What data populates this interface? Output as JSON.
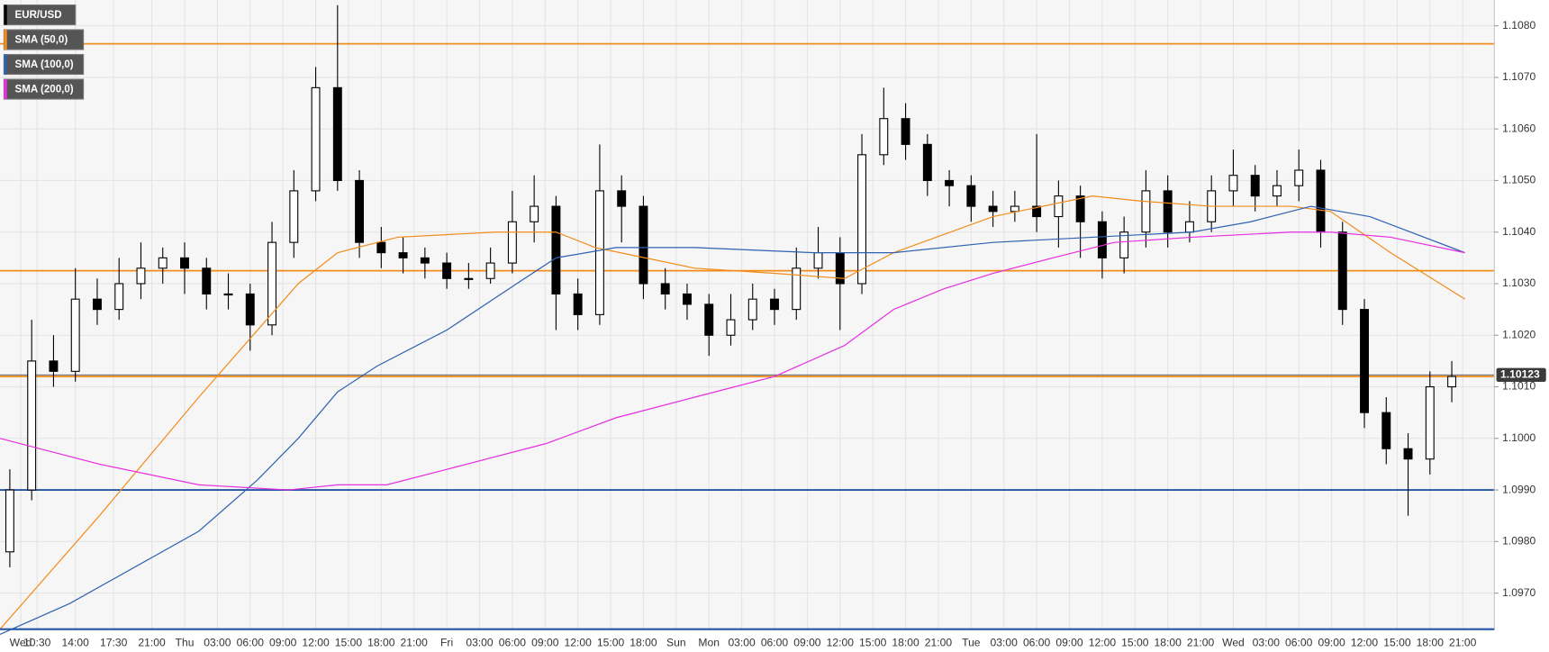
{
  "chart_data": {
    "type": "candlestick",
    "xlim": [
      7.1,
      143.9
    ],
    "ylim": [
      1.0963,
      1.1085
    ],
    "yticks": [
      {
        "value": 1.097,
        "label": "1.0970"
      },
      {
        "value": 1.098,
        "label": "1.0980"
      },
      {
        "value": 1.099,
        "label": "1.0990"
      },
      {
        "value": 1.1,
        "label": "1.1000"
      },
      {
        "value": 1.101,
        "label": "1.1010"
      },
      {
        "value": 1.102,
        "label": "1.1020"
      },
      {
        "value": 1.103,
        "label": "1.1030"
      },
      {
        "value": 1.104,
        "label": "1.1040"
      },
      {
        "value": 1.105,
        "label": "1.1050"
      },
      {
        "value": 1.106,
        "label": "1.1060"
      },
      {
        "value": 1.107,
        "label": "1.1070"
      },
      {
        "value": 1.108,
        "label": "1.1080"
      }
    ],
    "xticks": [
      {
        "value": 9,
        "label": "Wed"
      },
      {
        "value": 10.5,
        "label": "10:30"
      },
      {
        "value": 14,
        "label": "14:00"
      },
      {
        "value": 17.5,
        "label": "17:30"
      },
      {
        "value": 21,
        "label": "21:00"
      },
      {
        "value": 24,
        "label": "Thu"
      },
      {
        "value": 27,
        "label": "03:00"
      },
      {
        "value": 30,
        "label": "06:00"
      },
      {
        "value": 33,
        "label": "09:00"
      },
      {
        "value": 36,
        "label": "12:00"
      },
      {
        "value": 39,
        "label": "15:00"
      },
      {
        "value": 42,
        "label": "18:00"
      },
      {
        "value": 45,
        "label": "21:00"
      },
      {
        "value": 48,
        "label": "Fri"
      },
      {
        "value": 51,
        "label": "03:00"
      },
      {
        "value": 54,
        "label": "06:00"
      },
      {
        "value": 57,
        "label": "09:00"
      },
      {
        "value": 60,
        "label": "12:00"
      },
      {
        "value": 63,
        "label": "15:00"
      },
      {
        "value": 66,
        "label": "18:00"
      },
      {
        "value": 69,
        "label": "Sun"
      },
      {
        "value": 72,
        "label": "Mon"
      },
      {
        "value": 75,
        "label": "03:00"
      },
      {
        "value": 78,
        "label": "06:00"
      },
      {
        "value": 81,
        "label": "09:00"
      },
      {
        "value": 84,
        "label": "12:00"
      },
      {
        "value": 87,
        "label": "15:00"
      },
      {
        "value": 90,
        "label": "18:00"
      },
      {
        "value": 93,
        "label": "21:00"
      },
      {
        "value": 96,
        "label": "Tue"
      },
      {
        "value": 99,
        "label": "03:00"
      },
      {
        "value": 102,
        "label": "06:00"
      },
      {
        "value": 105,
        "label": "09:00"
      },
      {
        "value": 108,
        "label": "12:00"
      },
      {
        "value": 111,
        "label": "15:00"
      },
      {
        "value": 114,
        "label": "18:00"
      },
      {
        "value": 117,
        "label": "21:00"
      },
      {
        "value": 120,
        "label": "Wed"
      },
      {
        "value": 123,
        "label": "03:00"
      },
      {
        "value": 126,
        "label": "06:00"
      },
      {
        "value": 129,
        "label": "09:00"
      },
      {
        "value": 132,
        "label": "12:00"
      },
      {
        "value": 135,
        "label": "15:00"
      },
      {
        "value": 138,
        "label": "18:00"
      },
      {
        "value": 141,
        "label": "21:00"
      }
    ],
    "grid": true,
    "levels": [
      {
        "value": 1.10765,
        "color": "#f28c1b"
      },
      {
        "value": 1.10325,
        "color": "#f28c1b"
      },
      {
        "value": 1.1012,
        "color": "#f28c1b"
      },
      {
        "value": 1.099,
        "color": "#2455a4"
      }
    ],
    "last_price": 1.10123,
    "series": [
      {
        "name": "EUR/USD",
        "color": "#000000",
        "x": [
          8,
          10,
          12,
          14,
          16,
          18,
          20,
          22,
          24,
          26,
          28,
          30,
          32,
          34,
          36,
          38,
          40,
          42,
          44,
          46,
          48,
          50,
          52,
          54,
          56,
          58,
          60,
          62,
          64,
          66,
          68,
          70,
          72,
          74,
          76,
          78,
          80,
          82,
          84,
          86,
          88,
          90,
          92,
          94,
          96,
          98,
          100,
          102,
          104,
          106,
          108,
          110,
          112,
          114,
          116,
          118,
          120,
          122,
          124,
          126,
          128,
          130,
          132,
          134,
          136,
          138,
          140
        ],
        "open": [
          1.0978,
          1.099,
          1.1015,
          1.1013,
          1.1027,
          1.1025,
          1.103,
          1.1033,
          1.1035,
          1.1033,
          1.1028,
          1.1028,
          1.1022,
          1.1038,
          1.1048,
          1.1068,
          1.105,
          1.1038,
          1.1036,
          1.1035,
          1.1034,
          1.1031,
          1.1031,
          1.1034,
          1.1042,
          1.1045,
          1.1028,
          1.1024,
          1.1048,
          1.1045,
          1.103,
          1.1028,
          1.1026,
          1.102,
          1.1023,
          1.1027,
          1.1025,
          1.1033,
          1.1036,
          1.103,
          1.1055,
          1.1062,
          1.1057,
          1.105,
          1.1049,
          1.1045,
          1.1044,
          1.1045,
          1.1043,
          1.1047,
          1.1042,
          1.1035,
          1.104,
          1.1048,
          1.104,
          1.1042,
          1.1048,
          1.1051,
          1.1047,
          1.1049,
          1.1052,
          1.104,
          1.1025,
          1.1005,
          1.0998,
          1.0996,
          1.101
        ],
        "high": [
          1.0994,
          1.1023,
          1.102,
          1.1033,
          1.1031,
          1.1035,
          1.1038,
          1.1037,
          1.1038,
          1.1035,
          1.1032,
          1.103,
          1.1042,
          1.1052,
          1.1072,
          1.1084,
          1.1052,
          1.1041,
          1.1039,
          1.1037,
          1.1036,
          1.1034,
          1.1037,
          1.1048,
          1.1051,
          1.1047,
          1.1031,
          1.1057,
          1.1051,
          1.1047,
          1.1033,
          1.103,
          1.1028,
          1.1028,
          1.103,
          1.1029,
          1.1037,
          1.1041,
          1.1039,
          1.1059,
          1.1068,
          1.1065,
          1.1059,
          1.1052,
          1.1051,
          1.1048,
          1.1048,
          1.1059,
          1.105,
          1.1049,
          1.1044,
          1.1043,
          1.1052,
          1.1051,
          1.1046,
          1.1051,
          1.1056,
          1.1053,
          1.1052,
          1.1056,
          1.1054,
          1.1042,
          1.1027,
          1.1008,
          1.1001,
          1.1013,
          1.1015
        ],
        "low": [
          1.0975,
          1.0988,
          1.101,
          1.1011,
          1.1022,
          1.1023,
          1.1027,
          1.103,
          1.1028,
          1.1025,
          1.1025,
          1.1017,
          1.102,
          1.1035,
          1.1046,
          1.1048,
          1.1035,
          1.1033,
          1.1032,
          1.1031,
          1.1029,
          1.1029,
          1.103,
          1.1032,
          1.1038,
          1.1021,
          1.1021,
          1.1022,
          1.1038,
          1.1027,
          1.1025,
          1.1023,
          1.1016,
          1.1018,
          1.1021,
          1.1022,
          1.1023,
          1.1031,
          1.1021,
          1.1028,
          1.1053,
          1.1054,
          1.1047,
          1.1045,
          1.1042,
          1.1041,
          1.1042,
          1.104,
          1.1037,
          1.1035,
          1.1031,
          1.1032,
          1.1037,
          1.1037,
          1.1038,
          1.104,
          1.1045,
          1.1044,
          1.1045,
          1.1046,
          1.1037,
          1.1022,
          1.1002,
          1.0995,
          1.0985,
          1.0993,
          1.1007
        ],
        "close": [
          1.099,
          1.1015,
          1.1013,
          1.1027,
          1.1025,
          1.103,
          1.1033,
          1.1035,
          1.1033,
          1.1028,
          1.1028,
          1.1022,
          1.1038,
          1.1048,
          1.1068,
          1.105,
          1.1038,
          1.1036,
          1.1035,
          1.1034,
          1.1031,
          1.1031,
          1.1034,
          1.1042,
          1.1045,
          1.1028,
          1.1024,
          1.1048,
          1.1045,
          1.103,
          1.1028,
          1.1026,
          1.102,
          1.1023,
          1.1027,
          1.1025,
          1.1033,
          1.1036,
          1.103,
          1.1055,
          1.1062,
          1.1057,
          1.105,
          1.1049,
          1.1045,
          1.1044,
          1.1045,
          1.1043,
          1.1047,
          1.1042,
          1.1035,
          1.104,
          1.1048,
          1.104,
          1.1042,
          1.1048,
          1.1051,
          1.1047,
          1.1049,
          1.1052,
          1.104,
          1.1025,
          1.1005,
          1.0998,
          1.0996,
          1.101,
          1.1012
        ]
      },
      {
        "name": "SMA (50,0)",
        "color": "#f28c1b",
        "x": [
          7.1,
          16.2,
          25.3,
          34.4,
          38,
          43.5,
          52.5,
          58,
          61.6,
          70.7,
          78,
          84.4,
          88.9,
          98,
          107.1,
          111.6,
          118,
          125.3,
          128.9,
          134.4,
          141.2
        ],
        "values": [
          1.0963,
          1.0985,
          1.1008,
          1.103,
          1.1036,
          1.1039,
          1.104,
          1.104,
          1.1037,
          1.1033,
          1.1032,
          1.1031,
          1.1036,
          1.1043,
          1.1047,
          1.1046,
          1.1045,
          1.1045,
          1.1044,
          1.1036,
          1.1027
        ]
      },
      {
        "name": "SMA (100,0)",
        "color": "#2e62b0",
        "x": [
          7.1,
          13.5,
          25.3,
          30.7,
          34.4,
          38,
          41.6,
          48,
          54.4,
          58,
          63.5,
          70.7,
          81.6,
          88.9,
          98,
          107.1,
          116.2,
          121.6,
          127.1,
          132.5,
          141.2
        ],
        "values": [
          1.0962,
          1.0968,
          1.0982,
          1.0992,
          1.1,
          1.1009,
          1.1014,
          1.1021,
          1.103,
          1.1035,
          1.1037,
          1.1037,
          1.1036,
          1.1036,
          1.1038,
          1.1039,
          1.104,
          1.1042,
          1.1045,
          1.1043,
          1.1036
        ]
      },
      {
        "name": "SMA (200,0)",
        "color": "#e52fe0",
        "x": [
          7.1,
          16.2,
          25.3,
          33.5,
          38,
          42.5,
          48,
          57.1,
          63.5,
          70.7,
          78,
          84.4,
          88.9,
          93.5,
          98,
          103.5,
          109.1,
          116.2,
          125.3,
          128.9,
          134.4,
          141.2
        ],
        "values": [
          1.1,
          1.0995,
          1.0991,
          1.099,
          1.0991,
          1.0991,
          1.0994,
          1.0999,
          1.1004,
          1.1008,
          1.1012,
          1.1018,
          1.1025,
          1.1029,
          1.1032,
          1.1035,
          1.1038,
          1.1039,
          1.104,
          1.104,
          1.1039,
          1.1036
        ]
      }
    ]
  }
}
